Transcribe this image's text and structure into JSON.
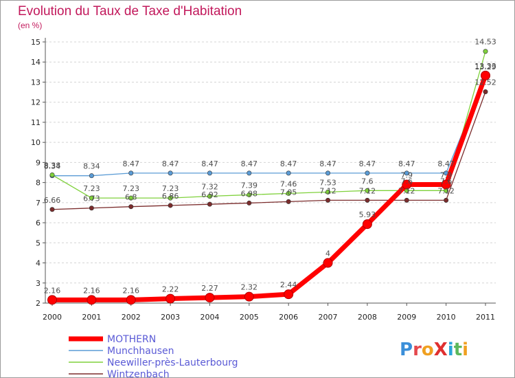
{
  "header": {
    "title": "Evolution du Taux de Taxe d'Habitation",
    "subtitle": "(en %)"
  },
  "logo": {
    "text": "ProXiti",
    "letters": [
      {
        "ch": "P",
        "color": "#3b8fd9"
      },
      {
        "ch": "r",
        "color": "#e5484d"
      },
      {
        "ch": "o",
        "color": "#f0a020"
      },
      {
        "ch": "X",
        "color": "#e03030"
      },
      {
        "ch": "i",
        "color": "#2aa6d9"
      },
      {
        "ch": "t",
        "color": "#5cb85c"
      },
      {
        "ch": "i",
        "color": "#f0a020"
      }
    ]
  },
  "chart_data": {
    "type": "line",
    "title": "Evolution du Taux de Taxe d'Habitation",
    "ylabel": "(en %)",
    "xlabel": "",
    "x": [
      "2000",
      "2001",
      "2002",
      "2003",
      "2004",
      "2005",
      "2006",
      "2007",
      "2008",
      "2009",
      "2010",
      "2011"
    ],
    "ylim": [
      2,
      15
    ],
    "yticks": [
      "2",
      "3",
      "4",
      "5",
      "6",
      "7",
      "8",
      "9",
      "10",
      "11",
      "12",
      "13",
      "14",
      "15"
    ],
    "grid": "horizontal dashed",
    "legend_position": "bottom-left",
    "series": [
      {
        "name": "MOTHERN",
        "color": "#ff0000",
        "emphasis": "thick",
        "values": [
          2.16,
          2.16,
          2.16,
          2.22,
          2.27,
          2.32,
          2.44,
          4,
          5.93,
          7.9,
          7.9,
          13.33
        ],
        "labels": [
          "2.16",
          "2.16",
          "2.16",
          "2.22",
          "2.27",
          "2.32",
          "2.44",
          "4",
          "5.93",
          "7.9",
          "7.9",
          "13.33"
        ]
      },
      {
        "name": "Munchhausen",
        "color": "#5a9bd5",
        "values": [
          8.34,
          8.34,
          8.47,
          8.47,
          8.47,
          8.47,
          8.47,
          8.47,
          8.47,
          8.47,
          8.47,
          13.29
        ],
        "labels": [
          "8.34",
          "8.34",
          "8.47",
          "8.47",
          "8.47",
          "8.47",
          "8.47",
          "8.47",
          "8.47",
          "8.47",
          "8.47",
          "13.29"
        ]
      },
      {
        "name": "Neewiller-près-Lauterbourg",
        "color": "#7fd13b",
        "values": [
          8.38,
          7.23,
          7.23,
          7.23,
          7.32,
          7.39,
          7.46,
          7.53,
          7.6,
          7.6,
          7.6,
          14.53
        ],
        "labels": [
          "8.38",
          "7.23",
          "7.23",
          "7.23",
          "7.32",
          "7.39",
          "7.46",
          "7.53",
          "7.6",
          "7.6",
          "7.6",
          "14.53"
        ]
      },
      {
        "name": "Wintzenbach",
        "color": "#7b2c2c",
        "values": [
          6.66,
          6.73,
          6.8,
          6.86,
          6.92,
          6.98,
          7.05,
          7.12,
          7.12,
          7.12,
          7.12,
          12.52
        ],
        "labels": [
          "6.66",
          "6.73",
          "6.8",
          "6.86",
          "6.92",
          "6.98",
          "7.05",
          "7.12",
          "7.12",
          "7.12",
          "7.12",
          "12.52"
        ]
      }
    ]
  }
}
